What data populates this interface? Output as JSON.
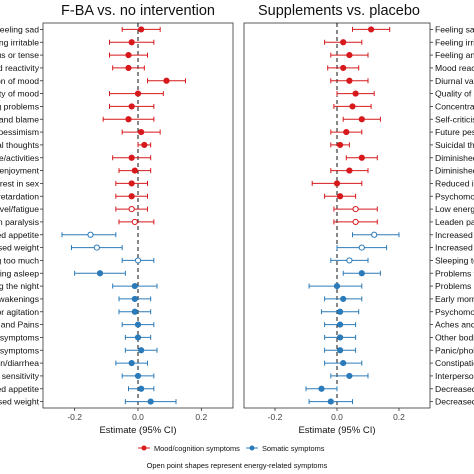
{
  "chart_data": [
    {
      "type": "forest",
      "title": "F-BA vs. no intervention",
      "xlabel": "Estimate (95% CI)",
      "xlim": [
        -0.3,
        0.3
      ],
      "xticks": [
        -0.2,
        0.0,
        0.2
      ],
      "xtick_labels": [
        "-0.2",
        "0.0",
        "0.2"
      ],
      "label_side": "left",
      "rows": [
        {
          "label": "Feeling sad",
          "est": 0.01,
          "lo": -0.05,
          "hi": 0.07,
          "group": "mood",
          "energy": false
        },
        {
          "label": "Feeling irritable",
          "est": -0.02,
          "lo": -0.09,
          "hi": 0.05,
          "group": "mood",
          "energy": false
        },
        {
          "label": "us or tense",
          "est": -0.03,
          "lo": -0.09,
          "hi": 0.03,
          "group": "mood",
          "energy": false
        },
        {
          "label": "ood reactivity",
          "est": -0.03,
          "lo": -0.08,
          "hi": 0.02,
          "group": "mood",
          "energy": false
        },
        {
          "label": "on of mood",
          "est": 0.09,
          "lo": 0.03,
          "hi": 0.15,
          "group": "mood",
          "energy": false
        },
        {
          "label": "Quality of mood",
          "est": 0.0,
          "lo": -0.09,
          "hi": 0.08,
          "group": "mood",
          "energy": false
        },
        {
          "label": "g problems",
          "est": -0.02,
          "lo": -0.09,
          "hi": 0.05,
          "group": "mood",
          "energy": false
        },
        {
          "label": "and blame",
          "est": -0.03,
          "lo": -0.11,
          "hi": 0.05,
          "group": "mood",
          "energy": false
        },
        {
          "label": "pessimism",
          "est": 0.01,
          "lo": -0.05,
          "hi": 0.07,
          "group": "mood",
          "energy": false
        },
        {
          "label": "al thoughts",
          "est": 0.02,
          "lo": 0.0,
          "hi": 0.04,
          "group": "mood",
          "energy": false
        },
        {
          "label": "e/activities",
          "est": -0.02,
          "lo": -0.08,
          "hi": 0.04,
          "group": "mood",
          "energy": false
        },
        {
          "label": "/enjoyment",
          "est": -0.01,
          "lo": -0.06,
          "hi": 0.04,
          "group": "mood",
          "energy": false
        },
        {
          "label": "erest in sex",
          "est": -0.02,
          "lo": -0.07,
          "hi": 0.03,
          "group": "mood",
          "energy": false
        },
        {
          "label": "retardation",
          "est": -0.02,
          "lo": -0.07,
          "hi": 0.03,
          "group": "mood",
          "energy": false
        },
        {
          "label": "evel/fatigue",
          "est": -0.02,
          "lo": -0.07,
          "hi": 0.03,
          "group": "mood",
          "energy": true
        },
        {
          "label": "en paralysis",
          "est": -0.01,
          "lo": -0.06,
          "hi": 0.05,
          "group": "mood",
          "energy": true
        },
        {
          "label": "creased appetite",
          "est": -0.15,
          "lo": -0.24,
          "hi": -0.07,
          "group": "somatic",
          "energy": true
        },
        {
          "label": "eased weight",
          "est": -0.13,
          "lo": -0.21,
          "hi": -0.05,
          "group": "somatic",
          "energy": true
        },
        {
          "label": "ping too much",
          "est": 0.0,
          "lo": -0.05,
          "hi": 0.05,
          "group": "somatic",
          "energy": true
        },
        {
          "label": "lling asleep",
          "est": -0.12,
          "lo": -0.2,
          "hi": -0.04,
          "group": "somatic",
          "energy": false
        },
        {
          "label": "g the night",
          "est": -0.01,
          "lo": -0.08,
          "hi": 0.06,
          "group": "somatic",
          "energy": false
        },
        {
          "label": "awakenings",
          "est": -0.01,
          "lo": -0.06,
          "hi": 0.04,
          "group": "somatic",
          "energy": false
        },
        {
          "label": "or agitation",
          "est": -0.01,
          "lo": -0.06,
          "hi": 0.04,
          "group": "somatic",
          "energy": false
        },
        {
          "label": "les and Pains",
          "est": 0.0,
          "lo": -0.05,
          "hi": 0.05,
          "group": "somatic",
          "energy": false
        },
        {
          "label": "symptoms",
          "est": 0.0,
          "lo": -0.04,
          "hi": 0.04,
          "group": "somatic",
          "energy": false
        },
        {
          "label": "c symptoms",
          "est": 0.01,
          "lo": -0.04,
          "hi": 0.06,
          "group": "somatic",
          "energy": false
        },
        {
          "label": "on/diarrhea",
          "est": -0.02,
          "lo": -0.07,
          "hi": 0.03,
          "group": "somatic",
          "energy": false
        },
        {
          "label": "l sensitivity",
          "est": 0.0,
          "lo": -0.05,
          "hi": 0.05,
          "group": "somatic",
          "energy": false
        },
        {
          "label": "eased appetite",
          "est": 0.01,
          "lo": -0.03,
          "hi": 0.05,
          "group": "somatic",
          "energy": false
        },
        {
          "label": "eased weight",
          "est": 0.04,
          "lo": -0.04,
          "hi": 0.12,
          "group": "somatic",
          "energy": false
        }
      ]
    },
    {
      "type": "forest",
      "title": "Supplements vs. placebo",
      "xlabel": "Estimate (95% CI)",
      "xlim": [
        -0.3,
        0.3
      ],
      "xticks": [
        -0.2,
        0.0,
        0.2
      ],
      "xtick_labels": [
        "-0.2",
        "0.0",
        "0.2"
      ],
      "label_side": "right",
      "rows": [
        {
          "label": "Feeling sad",
          "est": 0.11,
          "lo": 0.05,
          "hi": 0.17,
          "group": "mood",
          "energy": false
        },
        {
          "label": "Feeling irrita",
          "est": 0.02,
          "lo": -0.04,
          "hi": 0.08,
          "group": "mood",
          "energy": false
        },
        {
          "label": "Feeling anx",
          "est": 0.04,
          "lo": -0.02,
          "hi": 0.1,
          "group": "mood",
          "energy": false
        },
        {
          "label": "Mood reactiv",
          "est": 0.02,
          "lo": -0.03,
          "hi": 0.07,
          "group": "mood",
          "energy": false
        },
        {
          "label": "Diurnal vari",
          "est": 0.04,
          "lo": -0.02,
          "hi": 0.1,
          "group": "mood",
          "energy": false
        },
        {
          "label": "Quality of m",
          "est": 0.06,
          "lo": 0.0,
          "hi": 0.12,
          "group": "mood",
          "energy": false
        },
        {
          "label": "Concentrati",
          "est": 0.05,
          "lo": -0.01,
          "hi": 0.11,
          "group": "mood",
          "energy": false
        },
        {
          "label": "Self-criticis",
          "est": 0.08,
          "lo": 0.02,
          "hi": 0.14,
          "group": "mood",
          "energy": false
        },
        {
          "label": "Future pess",
          "est": 0.03,
          "lo": -0.02,
          "hi": 0.08,
          "group": "mood",
          "energy": false
        },
        {
          "label": "Suicidal tho",
          "est": 0.01,
          "lo": -0.02,
          "hi": 0.04,
          "group": "mood",
          "energy": false
        },
        {
          "label": "Diminished",
          "est": 0.08,
          "lo": 0.03,
          "hi": 0.13,
          "group": "mood",
          "energy": false
        },
        {
          "label": "Diminished",
          "est": 0.04,
          "lo": -0.02,
          "hi": 0.1,
          "group": "mood",
          "energy": false
        },
        {
          "label": "Reduced in",
          "est": 0.0,
          "lo": -0.08,
          "hi": 0.08,
          "group": "mood",
          "energy": false
        },
        {
          "label": "Psychomot",
          "est": 0.01,
          "lo": -0.04,
          "hi": 0.06,
          "group": "mood",
          "energy": false
        },
        {
          "label": "Low energy",
          "est": 0.06,
          "lo": -0.01,
          "hi": 0.13,
          "group": "mood",
          "energy": true
        },
        {
          "label": "Leaden par",
          "est": 0.06,
          "lo": -0.01,
          "hi": 0.13,
          "group": "mood",
          "energy": true
        },
        {
          "label": "Increased a",
          "est": 0.12,
          "lo": 0.05,
          "hi": 0.2,
          "group": "somatic",
          "energy": true
        },
        {
          "label": "Increased v",
          "est": 0.08,
          "lo": 0.0,
          "hi": 0.16,
          "group": "somatic",
          "energy": true
        },
        {
          "label": "Sleeping to",
          "est": 0.04,
          "lo": -0.02,
          "hi": 0.1,
          "group": "somatic",
          "energy": true
        },
        {
          "label": "Problems fa",
          "est": 0.08,
          "lo": 0.02,
          "hi": 0.14,
          "group": "somatic",
          "energy": false
        },
        {
          "label": "Problems sl",
          "est": 0.0,
          "lo": -0.09,
          "hi": 0.08,
          "group": "somatic",
          "energy": false
        },
        {
          "label": "Early morni",
          "est": 0.02,
          "lo": -0.04,
          "hi": 0.08,
          "group": "somatic",
          "energy": false
        },
        {
          "label": "Psychomot",
          "est": 0.01,
          "lo": -0.05,
          "hi": 0.07,
          "group": "somatic",
          "energy": false
        },
        {
          "label": "Aches and P",
          "est": 0.01,
          "lo": -0.04,
          "hi": 0.06,
          "group": "somatic",
          "energy": false
        },
        {
          "label": "Other bodil",
          "est": 0.01,
          "lo": -0.04,
          "hi": 0.06,
          "group": "somatic",
          "energy": false
        },
        {
          "label": "Panic/phob",
          "est": 0.01,
          "lo": -0.04,
          "hi": 0.06,
          "group": "somatic",
          "energy": false
        },
        {
          "label": "Constipatio",
          "est": 0.02,
          "lo": -0.04,
          "hi": 0.08,
          "group": "somatic",
          "energy": false
        },
        {
          "label": "Interperson",
          "est": 0.04,
          "lo": -0.02,
          "hi": 0.1,
          "group": "somatic",
          "energy": false
        },
        {
          "label": "Decreased",
          "est": -0.05,
          "lo": -0.1,
          "hi": 0.0,
          "group": "somatic",
          "energy": false
        },
        {
          "label": "Decreased",
          "est": -0.02,
          "lo": -0.09,
          "hi": 0.05,
          "group": "somatic",
          "energy": false
        }
      ]
    }
  ],
  "legend": {
    "items": [
      {
        "label": "Mood/cognition symptoms",
        "color": "#d7191c"
      },
      {
        "label": "Somatic symptoms",
        "color": "#2b7bba"
      }
    ],
    "note": "Open point shapes represent energy-related symptoms"
  }
}
